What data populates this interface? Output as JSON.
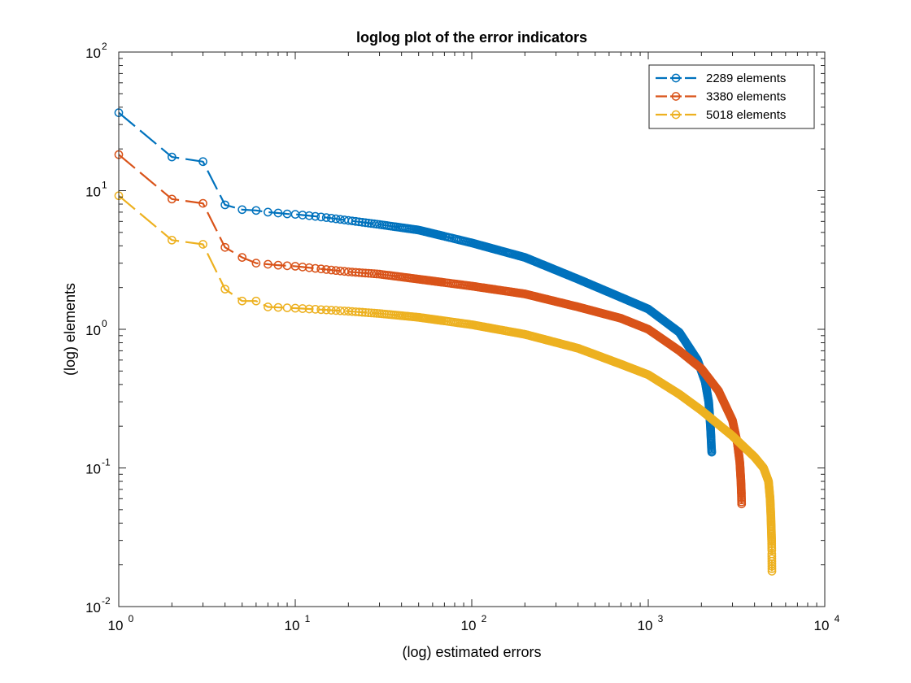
{
  "chart_data": {
    "type": "line",
    "title": "loglog plot of the error indicators",
    "xlabel": "(log) estimated errors",
    "ylabel": "(log) elements",
    "xscale": "log",
    "yscale": "log",
    "xlim": [
      1,
      10000
    ],
    "ylim": [
      0.01,
      100
    ],
    "x_ticks": [
      {
        "value": 1,
        "base": "10",
        "exp": "0"
      },
      {
        "value": 10,
        "base": "10",
        "exp": "1"
      },
      {
        "value": 100,
        "base": "10",
        "exp": "2"
      },
      {
        "value": 1000,
        "base": "10",
        "exp": "3"
      },
      {
        "value": 10000,
        "base": "10",
        "exp": "4"
      }
    ],
    "y_ticks": [
      {
        "value": 0.01,
        "base": "10",
        "exp": "-2"
      },
      {
        "value": 0.1,
        "base": "10",
        "exp": "-1"
      },
      {
        "value": 1,
        "base": "10",
        "exp": "0"
      },
      {
        "value": 10,
        "base": "10",
        "exp": "1"
      },
      {
        "value": 100,
        "base": "10",
        "exp": "2"
      }
    ],
    "grid": false,
    "legend_position": "top-right",
    "marker": "circle",
    "series": [
      {
        "name": "2289 elements",
        "color": "#0072BD",
        "n_points": 2289,
        "points": [
          [
            1,
            36.5
          ],
          [
            2,
            17.5
          ],
          [
            3,
            16.2
          ],
          [
            4,
            7.9
          ],
          [
            5,
            7.3
          ],
          [
            6,
            7.2
          ],
          [
            7,
            7.0
          ],
          [
            8,
            6.9
          ],
          [
            9,
            6.8
          ],
          [
            10,
            6.75
          ],
          [
            12,
            6.6
          ],
          [
            15,
            6.4
          ],
          [
            20,
            6.1
          ],
          [
            30,
            5.7
          ],
          [
            50,
            5.2
          ],
          [
            100,
            4.2
          ],
          [
            200,
            3.3
          ],
          [
            400,
            2.3
          ],
          [
            700,
            1.7
          ],
          [
            1000,
            1.4
          ],
          [
            1500,
            0.95
          ],
          [
            1900,
            0.6
          ],
          [
            2100,
            0.42
          ],
          [
            2200,
            0.3
          ],
          [
            2250,
            0.2
          ],
          [
            2270,
            0.16
          ],
          [
            2280,
            0.14
          ],
          [
            2289,
            0.13
          ]
        ]
      },
      {
        "name": "3380 elements",
        "color": "#D95319",
        "n_points": 3380,
        "points": [
          [
            1,
            18.2
          ],
          [
            2,
            8.7
          ],
          [
            3,
            8.1
          ],
          [
            4,
            3.9
          ],
          [
            5,
            3.3
          ],
          [
            6,
            3.0
          ],
          [
            8,
            2.9
          ],
          [
            10,
            2.85
          ],
          [
            15,
            2.7
          ],
          [
            20,
            2.6
          ],
          [
            30,
            2.5
          ],
          [
            50,
            2.3
          ],
          [
            100,
            2.05
          ],
          [
            200,
            1.8
          ],
          [
            400,
            1.45
          ],
          [
            700,
            1.2
          ],
          [
            1000,
            1.0
          ],
          [
            1500,
            0.7
          ],
          [
            2000,
            0.52
          ],
          [
            2500,
            0.36
          ],
          [
            3000,
            0.22
          ],
          [
            3200,
            0.15
          ],
          [
            3300,
            0.11
          ],
          [
            3350,
            0.08
          ],
          [
            3370,
            0.065
          ],
          [
            3380,
            0.055
          ]
        ]
      },
      {
        "name": "5018 elements",
        "color": "#EDB120",
        "n_points": 5018,
        "points": [
          [
            1,
            9.2
          ],
          [
            2,
            4.4
          ],
          [
            3,
            4.1
          ],
          [
            4,
            1.95
          ],
          [
            5,
            1.6
          ],
          [
            6,
            1.6
          ],
          [
            7,
            1.45
          ],
          [
            10,
            1.42
          ],
          [
            15,
            1.38
          ],
          [
            20,
            1.35
          ],
          [
            30,
            1.3
          ],
          [
            50,
            1.22
          ],
          [
            100,
            1.08
          ],
          [
            200,
            0.92
          ],
          [
            400,
            0.73
          ],
          [
            700,
            0.56
          ],
          [
            1000,
            0.47
          ],
          [
            1500,
            0.34
          ],
          [
            2000,
            0.26
          ],
          [
            3000,
            0.17
          ],
          [
            4000,
            0.12
          ],
          [
            4500,
            0.1
          ],
          [
            4800,
            0.08
          ],
          [
            4900,
            0.06
          ],
          [
            4950,
            0.045
          ],
          [
            5000,
            0.03
          ],
          [
            5010,
            0.025
          ],
          [
            5018,
            0.018
          ]
        ]
      }
    ]
  }
}
